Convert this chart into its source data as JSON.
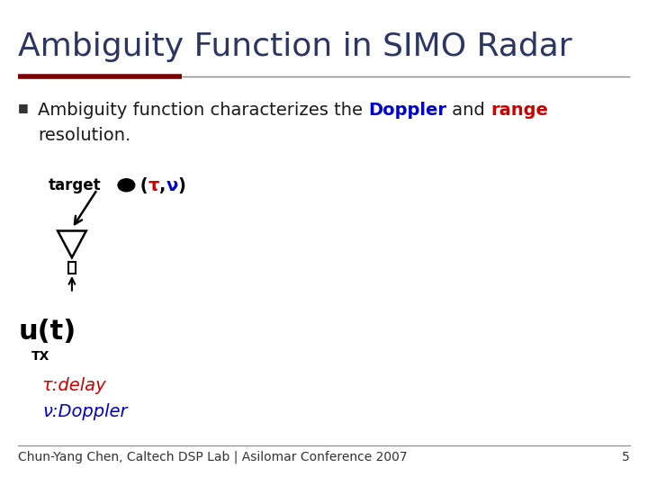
{
  "title": "Ambiguity Function in SIMO Radar",
  "title_color": "#2d3561",
  "title_fontsize": 26,
  "bg_color": "#ffffff",
  "header_line_color1": "#7b0000",
  "header_line_color2": "#aaaaaa",
  "doppler_color": "#0000cc",
  "range_color": "#cc0000",
  "bullet_fontsize": 14,
  "tau_color": "#cc0000",
  "nu_color": "#0000cc",
  "footer_text": "Chun-Yang Chen, Caltech DSP Lab | Asilomar Conference 2007",
  "footer_page": "5",
  "footer_fontsize": 10
}
